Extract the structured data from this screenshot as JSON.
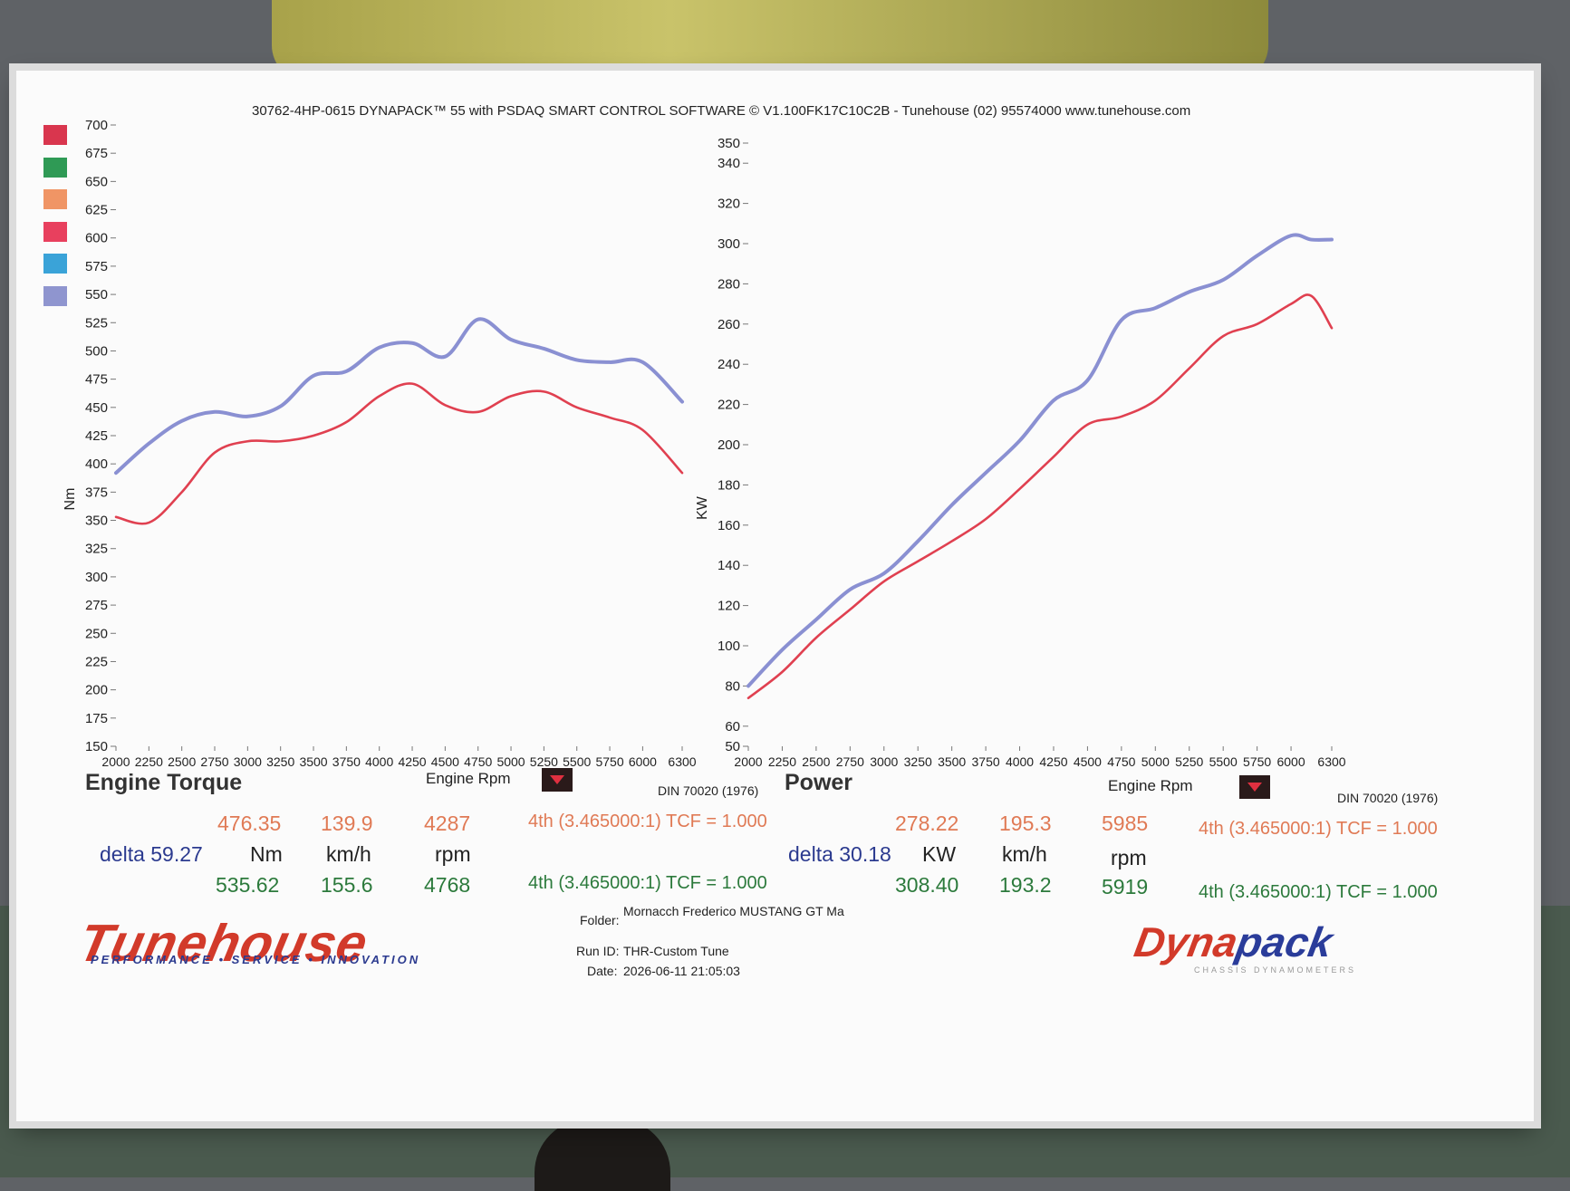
{
  "header": "30762-4HP-0615 DYNAPACK™ 55 with PSDAQ SMART CONTROL SOFTWARE © V1.100FK17C10C2B - Tunehouse (02) 95574000  www.tunehouse.com",
  "legend_colors": [
    "#d9364e",
    "#2f9a55",
    "#f09565",
    "#e8405e",
    "#3aa3d8",
    "#8f95cf"
  ],
  "torque": {
    "title": "Engine Torque",
    "xlabel": "Engine Rpm",
    "standard": "DIN 70020 (1976)",
    "row1": {
      "value": "476.35",
      "speed": "139.9",
      "rpm": "4287",
      "gear": "4th (3.465000:1) TCF = 1.000"
    },
    "delta": "delta 59.27",
    "units": {
      "value": "Nm",
      "speed": "km/h",
      "rpm": "rpm"
    },
    "row2": {
      "value": "535.62",
      "speed": "155.6",
      "rpm": "4768",
      "gear": "4th (3.465000:1) TCF = 1.000"
    }
  },
  "power": {
    "title": "Power",
    "xlabel": "Engine Rpm",
    "standard": "DIN 70020 (1976)",
    "row1": {
      "value": "278.22",
      "speed": "195.3",
      "rpm": "5985",
      "gear": "4th (3.465000:1) TCF = 1.000"
    },
    "delta": "delta 30.18",
    "units": {
      "value": "KW",
      "speed": "km/h",
      "rpm": "rpm"
    },
    "row2": {
      "value": "308.40",
      "speed": "193.2",
      "rpm": "5919",
      "gear": "4th (3.465000:1) TCF = 1.000"
    }
  },
  "info": {
    "folder_label": "Folder:",
    "folder": "Mornacch Frederico MUSTANG GT Ma",
    "run_label": "Run ID:",
    "run": "THR-Custom Tune",
    "date_label": "Date:",
    "date": "2026-06-11 21:05:03"
  },
  "logos": {
    "tunehouse": "Tunehouse",
    "tunehouse_tag": "PERFORMANCE • SERVICE • INNOVATION",
    "dynapack_a": "Dyna",
    "dynapack_b": "pack",
    "dynapack_tag": "CHASSIS DYNAMOMETERS"
  },
  "chart_data": [
    {
      "type": "line",
      "ylabel": "Nm",
      "xlabel": "Engine Rpm",
      "ylim": [
        150,
        700
      ],
      "yticks": [
        150,
        175,
        200,
        225,
        250,
        275,
        300,
        325,
        350,
        375,
        400,
        425,
        450,
        475,
        500,
        525,
        550,
        575,
        600,
        625,
        650,
        675,
        700
      ],
      "xticks": [
        2000,
        2250,
        2500,
        2750,
        3000,
        3250,
        3500,
        3750,
        4000,
        4250,
        4500,
        4750,
        5000,
        5250,
        5500,
        5750,
        6000,
        6300
      ],
      "x": [
        2000,
        2250,
        2500,
        2750,
        3000,
        3250,
        3500,
        3750,
        4000,
        4250,
        4500,
        4750,
        5000,
        5250,
        5500,
        5750,
        6000,
        6300
      ],
      "series": [
        {
          "color": "#e04050",
          "values": [
            353,
            348,
            375,
            410,
            420,
            420,
            425,
            437,
            460,
            471,
            452,
            446,
            460,
            464,
            450,
            441,
            430,
            392
          ]
        },
        {
          "color": "#8a90d2",
          "values": [
            392,
            418,
            438,
            446,
            442,
            451,
            478,
            482,
            503,
            507,
            495,
            528,
            510,
            502,
            492,
            490,
            490,
            455
          ]
        }
      ]
    },
    {
      "type": "line",
      "ylabel": "KW",
      "xlabel": "Engine Rpm",
      "ylim": [
        50,
        350
      ],
      "yticks": [
        50,
        60,
        80,
        100,
        120,
        140,
        160,
        180,
        200,
        220,
        240,
        260,
        280,
        300,
        320,
        340,
        350
      ],
      "xticks": [
        2000,
        2250,
        2500,
        2750,
        3000,
        3250,
        3500,
        3750,
        4000,
        4250,
        4500,
        4750,
        5000,
        5250,
        5500,
        5750,
        6000,
        6300
      ],
      "x": [
        2000,
        2250,
        2500,
        2750,
        3000,
        3250,
        3500,
        3750,
        4000,
        4250,
        4500,
        4750,
        5000,
        5250,
        5500,
        5750,
        6000,
        6150,
        6300
      ],
      "series": [
        {
          "color": "#e04050",
          "values": [
            74,
            87,
            104,
            118,
            132,
            142,
            152,
            163,
            178,
            194,
            210,
            214,
            222,
            238,
            254,
            260,
            270,
            274,
            258
          ]
        },
        {
          "color": "#8a90d2",
          "values": [
            80,
            98,
            113,
            128,
            136,
            152,
            170,
            186,
            202,
            222,
            232,
            262,
            268,
            276,
            282,
            294,
            304,
            302,
            302
          ]
        }
      ]
    }
  ]
}
